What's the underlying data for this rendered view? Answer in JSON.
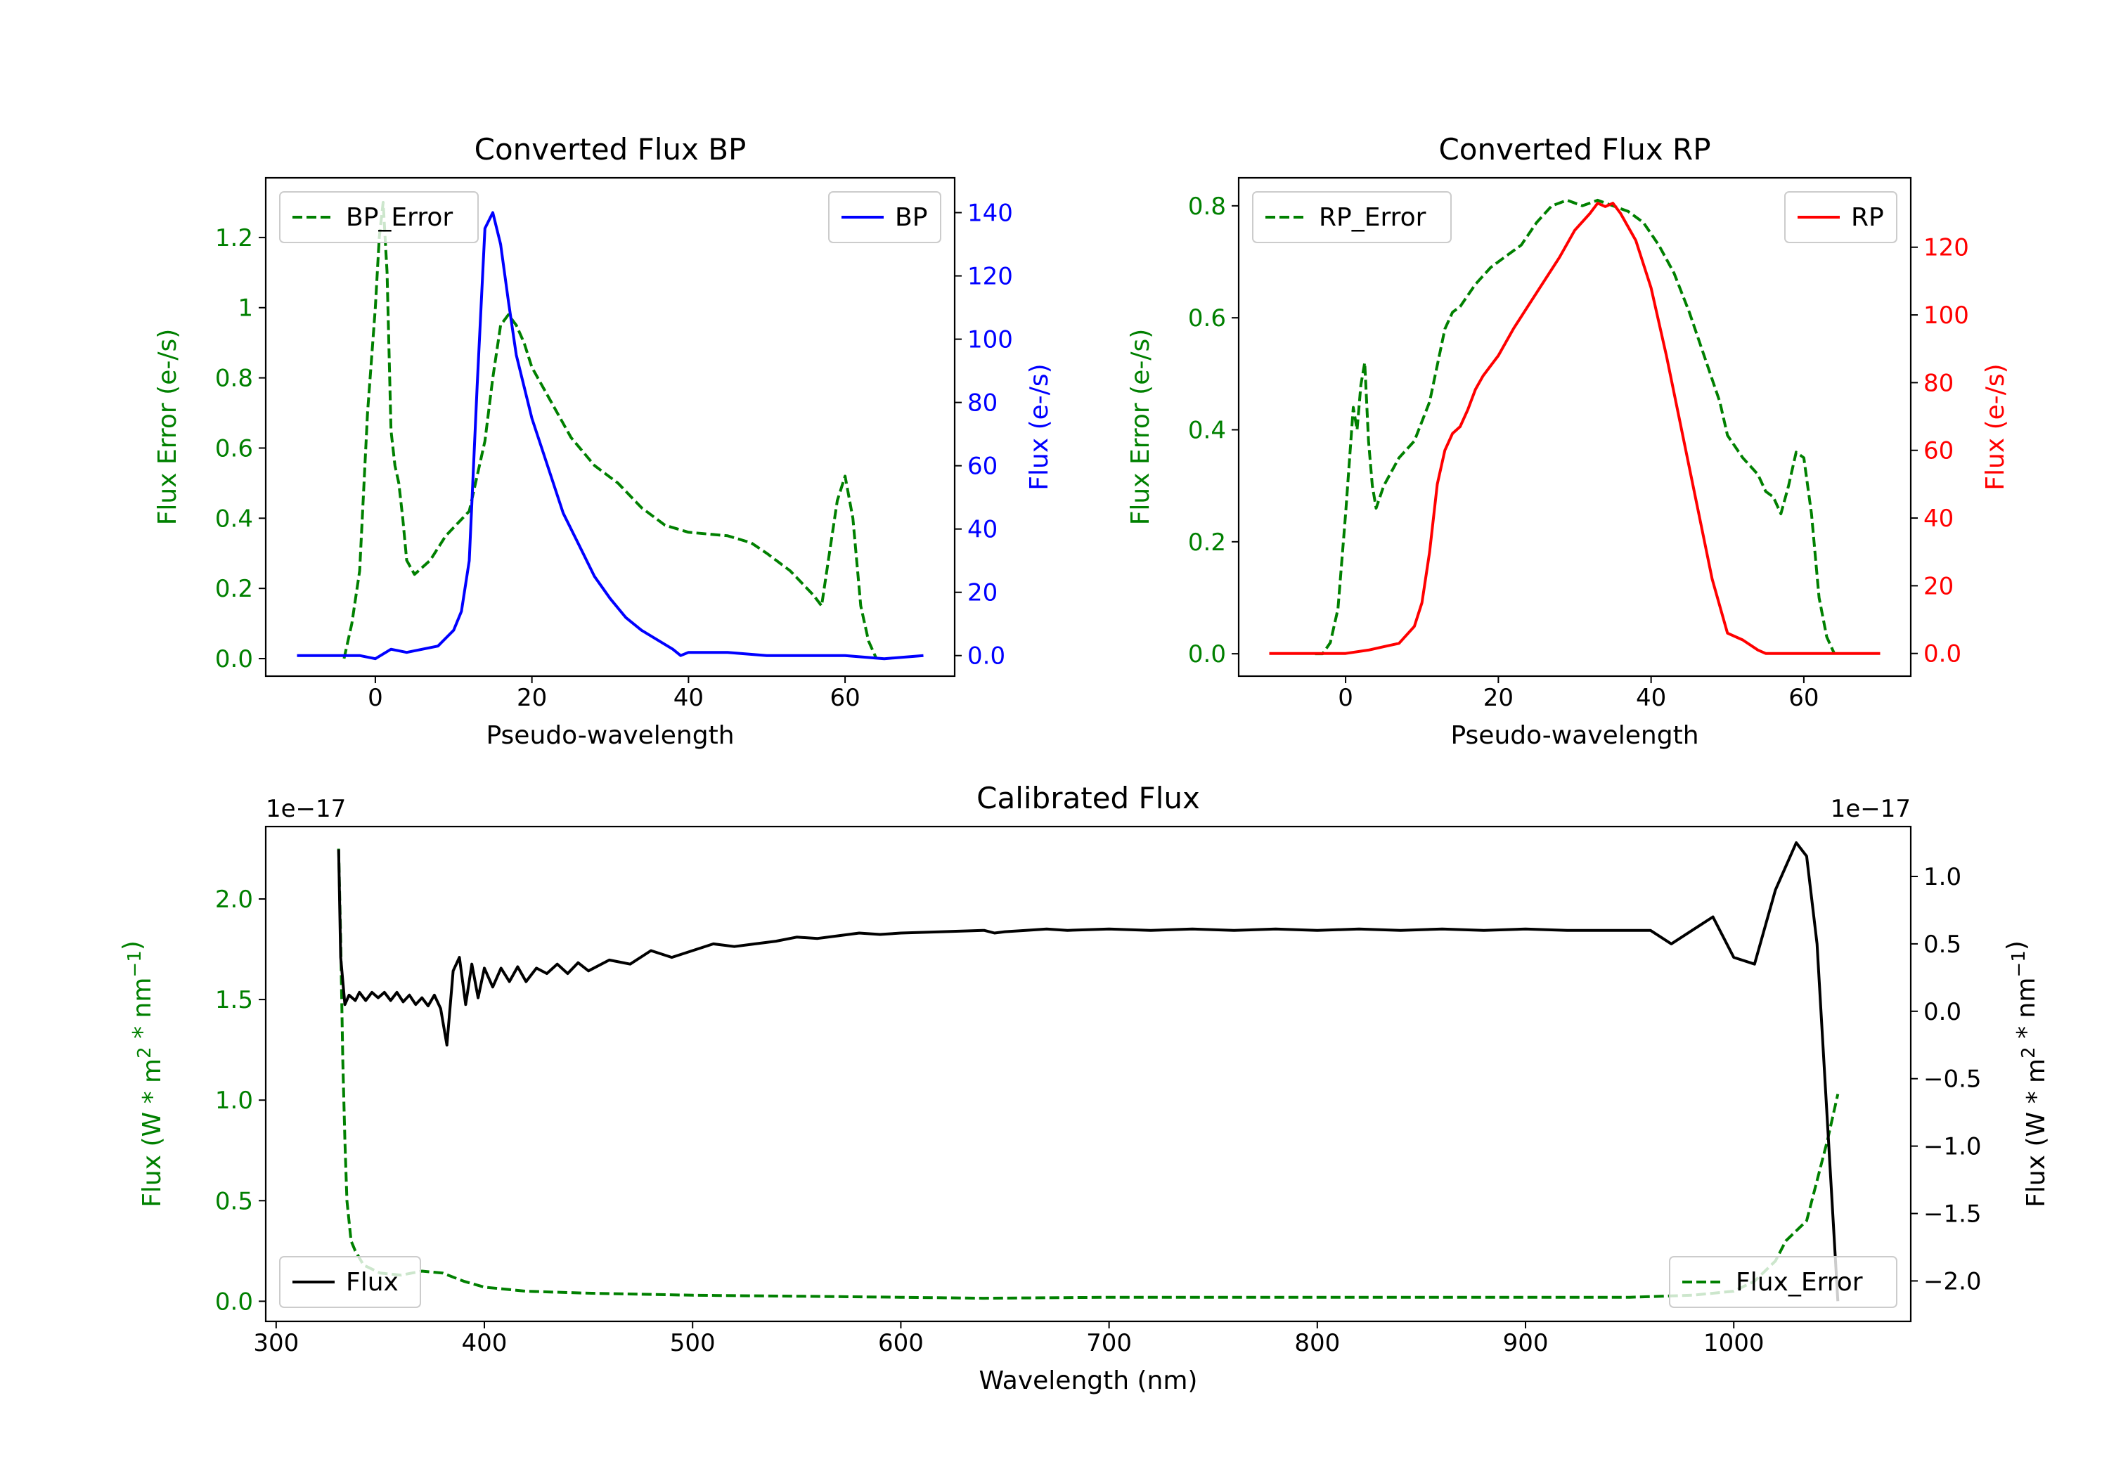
{
  "chart_data": [
    {
      "type": "line",
      "title": "Converted Flux BP",
      "xlabel": "Pseudo-wavelength",
      "ylabel_left": "Flux Error (e-/s)",
      "ylabel_right": "Flux (e-/s)",
      "xlim": [
        -14,
        74
      ],
      "ylim_left": [
        -0.05,
        1.37
      ],
      "ylim_right": [
        -6.5,
        151
      ],
      "xticks": [
        0,
        20,
        40,
        60
      ],
      "yticks_left": [
        0.0,
        0.2,
        0.4,
        0.6,
        0.8,
        1.0,
        1.2
      ],
      "yticks_right": [
        0,
        20,
        40,
        60,
        80,
        100,
        120,
        140
      ],
      "legend_left": {
        "label": "BP_Error",
        "placement": "upper left"
      },
      "legend_right": {
        "label": "BP",
        "placement": "upper right"
      },
      "series": [
        {
          "name": "BP_Error",
          "axis": "left",
          "color": "#008000",
          "style": "dashed",
          "x": [
            -4,
            -3,
            -2,
            -1,
            0,
            0.5,
            1,
            1.5,
            2,
            2.5,
            3,
            3.5,
            4,
            5,
            7,
            9,
            12,
            14,
            15,
            16,
            17,
            18,
            19,
            20,
            22,
            25,
            28,
            31,
            34,
            37,
            40,
            45,
            48,
            50,
            53,
            56,
            57,
            58,
            59,
            60,
            61,
            62,
            63,
            64
          ],
          "y": [
            0.0,
            0.1,
            0.25,
            0.7,
            1.0,
            1.2,
            1.3,
            1.1,
            0.65,
            0.55,
            0.5,
            0.4,
            0.28,
            0.24,
            0.28,
            0.35,
            0.42,
            0.62,
            0.8,
            0.95,
            0.98,
            0.95,
            0.9,
            0.83,
            0.75,
            0.63,
            0.55,
            0.5,
            0.43,
            0.38,
            0.36,
            0.35,
            0.33,
            0.3,
            0.25,
            0.18,
            0.15,
            0.3,
            0.45,
            0.52,
            0.4,
            0.15,
            0.05,
            0.0
          ]
        },
        {
          "name": "BP",
          "axis": "right",
          "color": "#0000ff",
          "style": "solid",
          "x": [
            -10,
            -5,
            -2,
            0,
            2,
            4,
            6,
            8,
            10,
            11,
            12,
            13,
            14,
            15,
            16,
            17,
            18,
            19,
            20,
            22,
            24,
            26,
            28,
            30,
            32,
            34,
            36,
            38,
            39,
            40,
            45,
            50,
            55,
            60,
            65,
            70
          ],
          "y": [
            0,
            0,
            0,
            -1,
            2,
            1,
            2,
            3,
            8,
            14,
            30,
            85,
            135,
            140,
            130,
            112,
            95,
            85,
            75,
            60,
            45,
            35,
            25,
            18,
            12,
            8,
            5,
            2,
            0,
            1,
            1,
            0,
            0,
            0,
            -1,
            0
          ]
        }
      ]
    },
    {
      "type": "line",
      "title": "Converted Flux RP",
      "xlabel": "Pseudo-wavelength",
      "ylabel_left": "Flux Error (e-/s)",
      "ylabel_right": "Flux (e-/s)",
      "xlim": [
        -14,
        74
      ],
      "ylim_left": [
        -0.04,
        0.85
      ],
      "ylim_right": [
        -6.7,
        140.5
      ],
      "xticks": [
        0,
        20,
        40,
        60
      ],
      "yticks_left": [
        0.0,
        0.2,
        0.4,
        0.6,
        0.8
      ],
      "yticks_right": [
        0,
        20,
        40,
        60,
        80,
        100,
        120
      ],
      "legend_left": {
        "label": "RP_Error",
        "placement": "upper left"
      },
      "legend_right": {
        "label": "RP",
        "placement": "upper right"
      },
      "series": [
        {
          "name": "RP_Error",
          "axis": "right_of_none",
          "color": "#008000",
          "style": "dashed",
          "x": [
            -4,
            -3,
            -2,
            -1,
            0,
            1,
            1.5,
            2,
            2.5,
            3,
            3.5,
            4,
            5,
            7,
            9,
            11,
            13,
            14,
            15,
            17,
            19,
            21,
            23,
            25,
            27,
            29,
            31,
            33,
            35,
            37,
            39,
            41,
            43,
            45,
            47,
            49,
            50,
            52,
            54,
            55,
            56,
            57,
            58,
            59,
            60,
            61,
            62,
            63,
            64
          ],
          "y": [
            0.0,
            0.0,
            0.02,
            0.08,
            0.25,
            0.44,
            0.4,
            0.48,
            0.52,
            0.38,
            0.3,
            0.26,
            0.3,
            0.35,
            0.38,
            0.45,
            0.58,
            0.61,
            0.62,
            0.66,
            0.69,
            0.71,
            0.73,
            0.77,
            0.8,
            0.81,
            0.8,
            0.81,
            0.8,
            0.79,
            0.77,
            0.73,
            0.68,
            0.61,
            0.53,
            0.45,
            0.39,
            0.35,
            0.32,
            0.29,
            0.28,
            0.25,
            0.3,
            0.36,
            0.35,
            0.25,
            0.1,
            0.03,
            0.0
          ]
        },
        {
          "name": "RP",
          "axis": "right",
          "color": "#ff0000",
          "style": "solid",
          "x": [
            -10,
            -5,
            0,
            3,
            5,
            7,
            9,
            10,
            11,
            12,
            13,
            14,
            15,
            16,
            17,
            18,
            19,
            20,
            22,
            24,
            26,
            28,
            30,
            32,
            33,
            34,
            35,
            36,
            38,
            40,
            42,
            44,
            46,
            48,
            50,
            52,
            54,
            55,
            58,
            60,
            65,
            70
          ],
          "y": [
            0,
            0,
            0,
            1,
            2,
            3,
            8,
            15,
            30,
            50,
            60,
            65,
            67,
            72,
            78,
            82,
            85,
            88,
            96,
            103,
            110,
            117,
            125,
            130,
            133,
            132,
            133,
            130,
            122,
            108,
            88,
            66,
            44,
            22,
            6,
            4,
            1,
            0,
            0,
            0,
            0,
            0
          ]
        }
      ]
    },
    {
      "type": "line",
      "title": "Calibrated Flux",
      "xlabel": "Wavelength (nm)",
      "ylabel_left": "Flux (W * m$^2$ * nm$^{-1}$)",
      "ylabel_right": "Flux (W * m$^2$ * nm$^{-1}$)",
      "scale_label_left": "1e−17",
      "scale_label_right": "1e−17",
      "xlim": [
        295,
        1085
      ],
      "ylim_left": [
        -0.1,
        2.36
      ],
      "ylim_right": [
        -2.3,
        1.37
      ],
      "xticks": [
        300,
        400,
        500,
        600,
        700,
        800,
        900,
        1000
      ],
      "yticks_left": [
        "0.0",
        "0.5",
        "1.0",
        "1.5",
        "2.0"
      ],
      "yticks_right": [
        "1.0",
        "0.5",
        "0.0",
        "−0.5",
        "−1.0",
        "−1.5",
        "−2.0"
      ],
      "legend_left": {
        "label": "Flux",
        "placement": "lower left"
      },
      "legend_right": {
        "label": "Flux_Error",
        "placement": "lower right"
      },
      "series": [
        {
          "name": "Flux_Error",
          "axis": "left",
          "color": "#008000",
          "style": "dashed",
          "x": [
            330,
            331,
            332,
            333,
            334,
            336,
            338,
            342,
            350,
            360,
            370,
            380,
            390,
            400,
            420,
            450,
            500,
            550,
            600,
            640,
            700,
            800,
            900,
            950,
            980,
            1000,
            1010,
            1020,
            1025,
            1030,
            1035,
            1040,
            1045,
            1050
          ],
          "y": [
            2.25,
            1.8,
            1.2,
            0.8,
            0.5,
            0.3,
            0.25,
            0.18,
            0.14,
            0.13,
            0.15,
            0.14,
            0.1,
            0.07,
            0.05,
            0.04,
            0.03,
            0.025,
            0.02,
            0.015,
            0.02,
            0.02,
            0.02,
            0.02,
            0.03,
            0.05,
            0.1,
            0.2,
            0.3,
            0.35,
            0.4,
            0.6,
            0.8,
            1.03
          ]
        },
        {
          "name": "Flux",
          "axis": "right",
          "color": "#000000",
          "style": "solid",
          "x": [
            330,
            331,
            333,
            335,
            338,
            340,
            343,
            346,
            349,
            352,
            355,
            358,
            361,
            364,
            367,
            370,
            373,
            376,
            379,
            382,
            385,
            388,
            391,
            394,
            397,
            400,
            404,
            408,
            412,
            416,
            420,
            425,
            430,
            435,
            440,
            445,
            450,
            460,
            470,
            480,
            490,
            500,
            510,
            520,
            530,
            540,
            550,
            560,
            570,
            580,
            590,
            600,
            620,
            640,
            645,
            650,
            660,
            670,
            680,
            700,
            720,
            740,
            760,
            780,
            800,
            820,
            840,
            860,
            880,
            900,
            920,
            940,
            960,
            970,
            980,
            990,
            1000,
            1010,
            1020,
            1030,
            1035,
            1040,
            1050
          ],
          "y": [
            1.2,
            0.4,
            0.05,
            0.12,
            0.08,
            0.14,
            0.08,
            0.14,
            0.1,
            0.14,
            0.08,
            0.14,
            0.07,
            0.12,
            0.05,
            0.1,
            0.04,
            0.12,
            0.02,
            -0.25,
            0.3,
            0.4,
            0.05,
            0.35,
            0.1,
            0.32,
            0.18,
            0.32,
            0.22,
            0.33,
            0.22,
            0.32,
            0.28,
            0.35,
            0.28,
            0.36,
            0.3,
            0.38,
            0.35,
            0.45,
            0.4,
            0.45,
            0.5,
            0.48,
            0.5,
            0.52,
            0.55,
            0.54,
            0.56,
            0.58,
            0.57,
            0.58,
            0.59,
            0.6,
            0.58,
            0.59,
            0.6,
            0.61,
            0.6,
            0.61,
            0.6,
            0.61,
            0.6,
            0.61,
            0.6,
            0.61,
            0.6,
            0.61,
            0.6,
            0.61,
            0.6,
            0.6,
            0.6,
            0.5,
            0.6,
            0.7,
            0.4,
            0.35,
            0.9,
            1.25,
            1.15,
            0.5,
            -2.15
          ]
        }
      ]
    }
  ]
}
